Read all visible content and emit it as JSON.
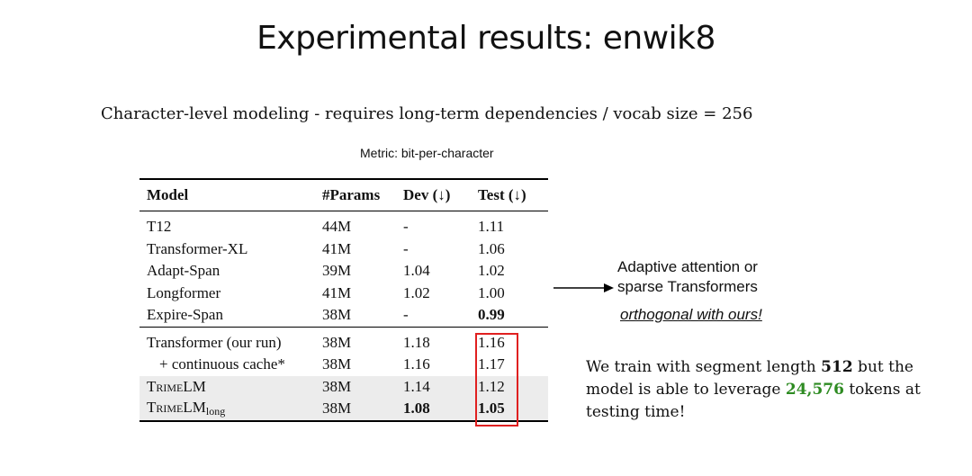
{
  "title": "Experimental results:  enwik8",
  "subtitle": "Character-level modeling - requires long-term dependencies / vocab size = 256",
  "metric": "Metric: bit-per-character",
  "table": {
    "headers": [
      "Model",
      "#Params",
      "Dev (↓)",
      "Test (↓)"
    ],
    "group1": [
      {
        "model": "T12",
        "params": "44M",
        "dev": "-",
        "test": "1.11"
      },
      {
        "model": "Transformer-XL",
        "params": "41M",
        "dev": "-",
        "test": "1.06"
      },
      {
        "model": "Adapt-Span",
        "params": "39M",
        "dev": "1.04",
        "test": "1.02"
      },
      {
        "model": "Longformer",
        "params": "41M",
        "dev": "1.02",
        "test": "1.00"
      },
      {
        "model": "Expire-Span",
        "params": "38M",
        "dev": "-",
        "test": "0.99"
      }
    ],
    "group2": [
      {
        "model": "Transformer (our run)",
        "params": "38M",
        "dev": "1.18",
        "test": "1.16"
      },
      {
        "model": "+ continuous cache*",
        "params": "38M",
        "dev": "1.16",
        "test": "1.17"
      },
      {
        "model_main": "TrimeLM",
        "params": "38M",
        "dev": "1.14",
        "test": "1.12"
      },
      {
        "model_main": "TrimeLM",
        "model_sub": "long",
        "params": "38M",
        "dev": "1.08",
        "test": "1.05"
      }
    ]
  },
  "note": {
    "line1": "Adaptive attention or",
    "line2": "sparse Transformers",
    "emphasis": "orthogonal with ours!"
  },
  "train_note": {
    "part1": "We train with segment length ",
    "seg_len": "512",
    "part2": " but the model is able to leverage ",
    "tokens": "24,576",
    "part3": " tokens at testing time!"
  },
  "colors": {
    "highlight_box": "#e02020",
    "token_count": "#2e8b22",
    "row_shade": "#ececec"
  }
}
